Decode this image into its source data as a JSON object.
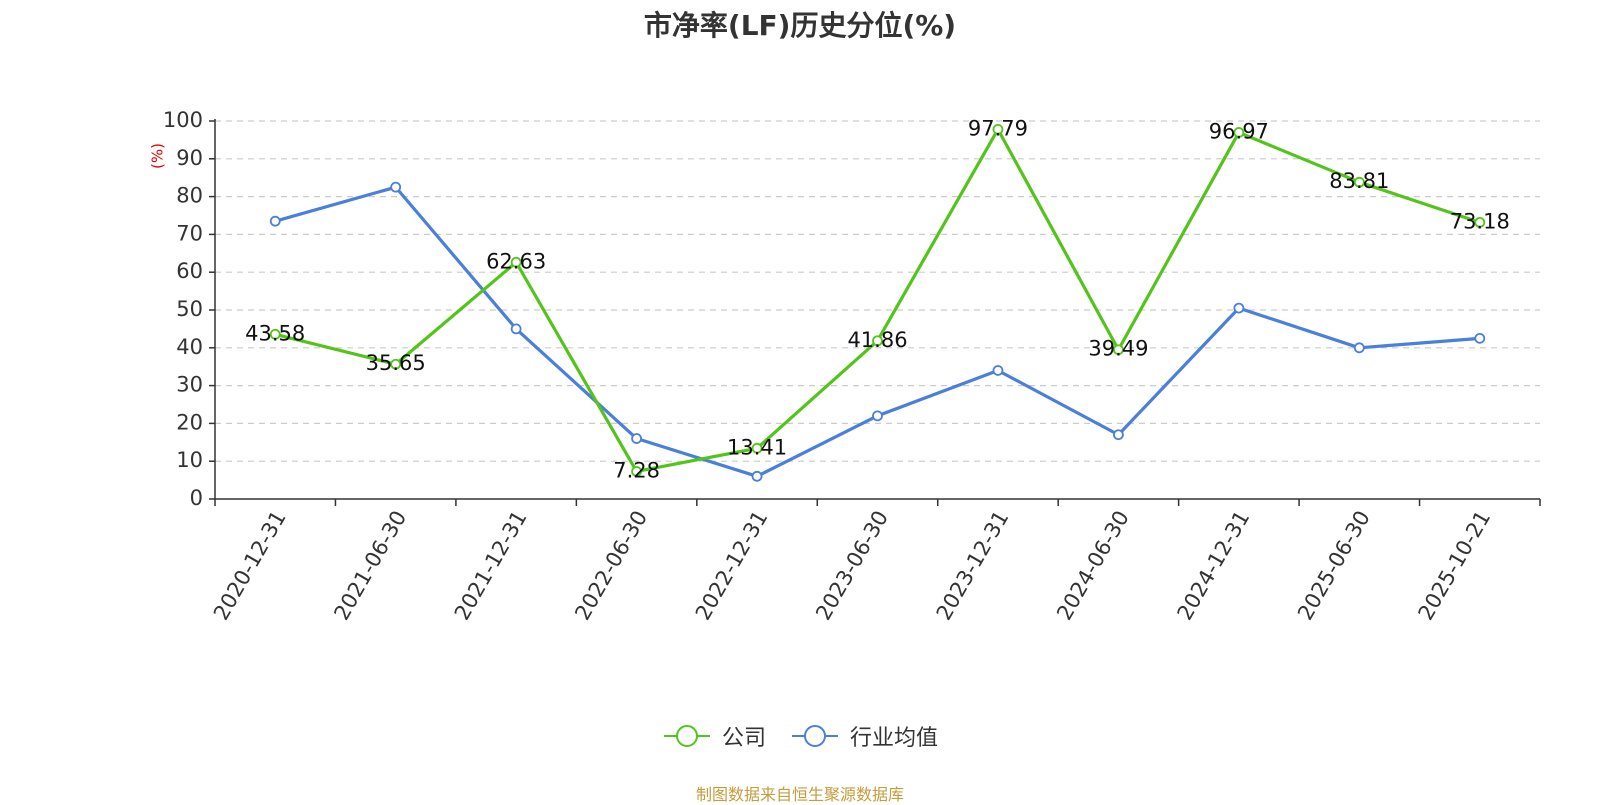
{
  "title": "市净率(LF)历史分位(%)",
  "source": "制图数据来自恒生聚源数据库",
  "colors": {
    "company": "#52c41a",
    "industry": "#4a7fdc",
    "grid": "#cccccc",
    "axis": "#333333",
    "ylabel": "#e00000"
  },
  "chart_data": {
    "type": "line",
    "title": "市净率(LF)历史分位(%)",
    "ylabel": "(%)",
    "xlabel": "",
    "ylim": [
      0,
      100
    ],
    "yticks": [
      0,
      10,
      20,
      30,
      40,
      50,
      60,
      70,
      80,
      90,
      100
    ],
    "grid": true,
    "legend_placement": "bottom-center",
    "categories": [
      "2020-12-31",
      "2021-06-30",
      "2021-12-31",
      "2022-06-30",
      "2022-12-31",
      "2023-06-30",
      "2023-12-31",
      "2024-06-30",
      "2024-12-31",
      "2025-06-30",
      "2025-10-21"
    ],
    "series": [
      {
        "name": "公司",
        "values": [
          43.58,
          35.65,
          62.63,
          7.28,
          13.41,
          41.86,
          97.79,
          39.49,
          96.97,
          83.81,
          73.18
        ],
        "labels": [
          "43.58",
          "35.65",
          "62.63",
          "7.28",
          "13.41",
          "41.86",
          "97.79",
          "39.49",
          "96.97",
          "83.81",
          "73.18"
        ]
      },
      {
        "name": "行业均值",
        "values": [
          73.5,
          82.5,
          45,
          16,
          6,
          22,
          34,
          17,
          50.5,
          40,
          42.5
        ]
      }
    ]
  }
}
